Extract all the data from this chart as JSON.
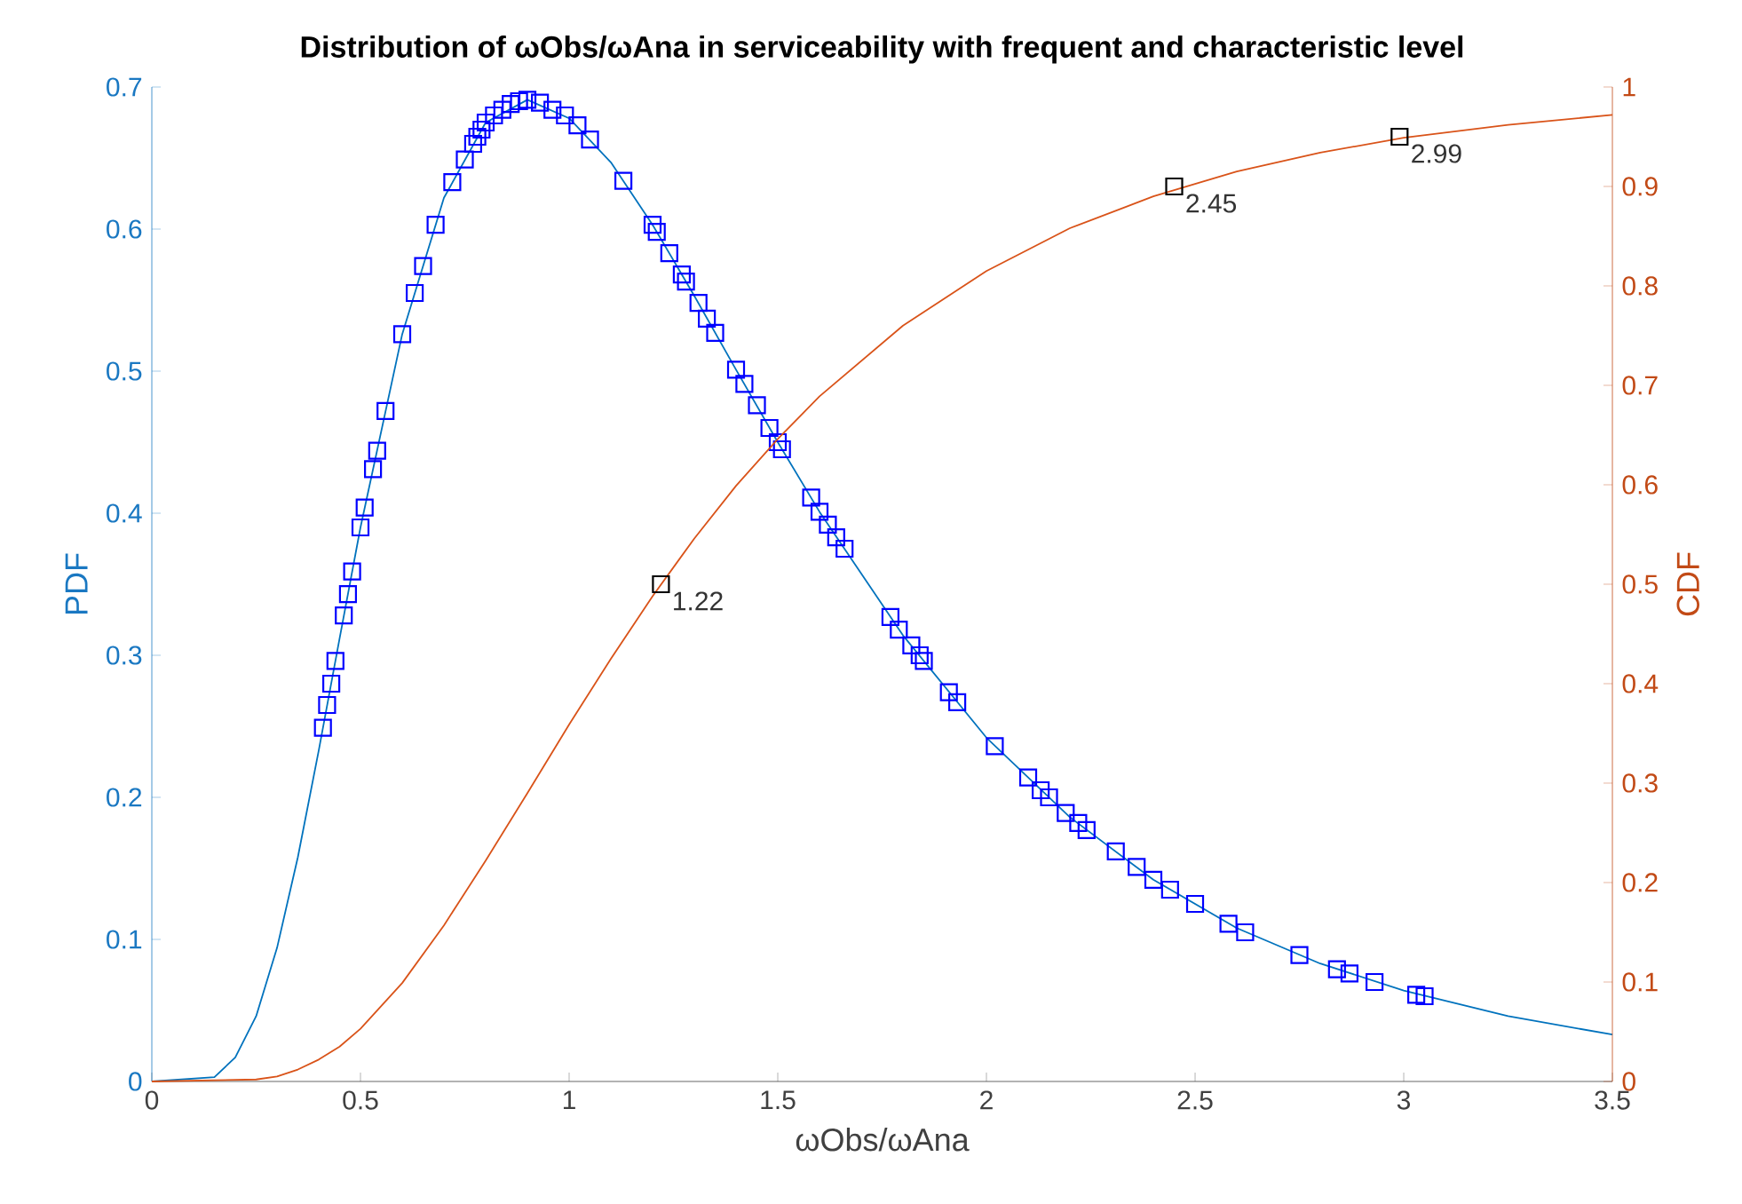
{
  "chart_data": {
    "type": "line",
    "title": "Distribution of ωObs/ωAna in serviceability with frequent and characteristic level",
    "xlabel": "ωObs/ωAna",
    "ylabel": "PDF",
    "y2label": "CDF",
    "xlim": [
      0,
      3.5
    ],
    "xticks": [
      0,
      0.5,
      1,
      1.5,
      2,
      2.5,
      3,
      3.5
    ],
    "ylim": [
      0,
      0.7
    ],
    "yticks": [
      0,
      0.1,
      0.2,
      0.3,
      0.4,
      0.5,
      0.6,
      0.7
    ],
    "y2lim": [
      0,
      1
    ],
    "y2ticks": [
      0,
      0.1,
      0.2,
      0.3,
      0.4,
      0.5,
      0.6,
      0.7,
      0.8,
      0.9,
      1
    ],
    "series": [
      {
        "color": "#0072bd",
        "x": [
          0,
          0.15,
          0.2,
          0.25,
          0.3,
          0.35,
          0.4,
          0.45,
          0.5,
          0.6,
          0.7,
          0.8,
          0.9,
          1.0,
          1.1,
          1.2,
          1.3,
          1.4,
          1.5,
          1.6,
          1.8,
          2.0,
          2.2,
          2.4,
          2.6,
          2.8,
          3.0,
          3.25,
          3.5
        ],
        "values": [
          0,
          0.003,
          0.017,
          0.046,
          0.094,
          0.158,
          0.233,
          0.312,
          0.39,
          0.526,
          0.622,
          0.675,
          0.691,
          0.678,
          0.647,
          0.603,
          0.553,
          0.501,
          0.45,
          0.401,
          0.314,
          0.242,
          0.186,
          0.142,
          0.108,
          0.083,
          0.064,
          0.046,
          0.033
        ]
      },
      {
        "type": "scatter",
        "marker": "square",
        "color": "#0000ff",
        "x": [
          0.41,
          0.42,
          0.43,
          0.44,
          0.46,
          0.47,
          0.48,
          0.5,
          0.51,
          0.53,
          0.54,
          0.56,
          0.6,
          0.63,
          0.65,
          0.68,
          0.72,
          0.75,
          0.77,
          0.78,
          0.79,
          0.8,
          0.82,
          0.84,
          0.86,
          0.88,
          0.9,
          0.93,
          0.96,
          0.99,
          1.02,
          1.05,
          1.13,
          1.2,
          1.21,
          1.24,
          1.27,
          1.28,
          1.31,
          1.33,
          1.35,
          1.4,
          1.42,
          1.45,
          1.48,
          1.5,
          1.51,
          1.58,
          1.6,
          1.62,
          1.64,
          1.66,
          1.77,
          1.79,
          1.82,
          1.84,
          1.85,
          1.91,
          1.93,
          2.02,
          2.1,
          2.13,
          2.15,
          2.19,
          2.22,
          2.24,
          2.31,
          2.36,
          2.4,
          2.44,
          2.5,
          2.58,
          2.62,
          2.75,
          2.84,
          2.87,
          2.93,
          3.03,
          3.05
        ],
        "values": [
          0.249,
          0.265,
          0.28,
          0.296,
          0.328,
          0.343,
          0.359,
          0.39,
          0.404,
          0.431,
          0.444,
          0.472,
          0.526,
          0.555,
          0.574,
          0.603,
          0.633,
          0.649,
          0.66,
          0.665,
          0.67,
          0.675,
          0.68,
          0.684,
          0.688,
          0.69,
          0.691,
          0.689,
          0.684,
          0.68,
          0.673,
          0.663,
          0.634,
          0.603,
          0.598,
          0.583,
          0.568,
          0.563,
          0.548,
          0.537,
          0.527,
          0.501,
          0.491,
          0.476,
          0.46,
          0.45,
          0.445,
          0.411,
          0.401,
          0.392,
          0.383,
          0.375,
          0.327,
          0.318,
          0.307,
          0.3,
          0.296,
          0.274,
          0.267,
          0.236,
          0.214,
          0.205,
          0.2,
          0.189,
          0.182,
          0.177,
          0.162,
          0.151,
          0.142,
          0.135,
          0.125,
          0.111,
          0.105,
          0.089,
          0.079,
          0.076,
          0.07,
          0.061,
          0.06
        ]
      },
      {
        "axis": "y2",
        "color": "#d95319",
        "x": [
          0,
          0.25,
          0.3,
          0.35,
          0.4,
          0.45,
          0.5,
          0.6,
          0.7,
          0.8,
          0.9,
          1.0,
          1.1,
          1.2,
          1.3,
          1.4,
          1.5,
          1.6,
          1.8,
          2.0,
          2.2,
          2.4,
          2.6,
          2.8,
          3.0,
          3.25,
          3.5
        ],
        "values": [
          0,
          0.002,
          0.005,
          0.012,
          0.022,
          0.035,
          0.053,
          0.099,
          0.157,
          0.222,
          0.29,
          0.359,
          0.425,
          0.488,
          0.546,
          0.599,
          0.646,
          0.689,
          0.76,
          0.815,
          0.858,
          0.89,
          0.915,
          0.934,
          0.949,
          0.962,
          0.972
        ]
      },
      {
        "type": "scatter",
        "axis": "y2",
        "marker": "square",
        "color": "#000000",
        "x": [
          1.22,
          2.45,
          2.99
        ],
        "values": [
          0.5,
          0.9,
          0.95
        ]
      }
    ],
    "annotations": [
      "1.22",
      "2.45",
      "2.99"
    ],
    "grid": false
  }
}
